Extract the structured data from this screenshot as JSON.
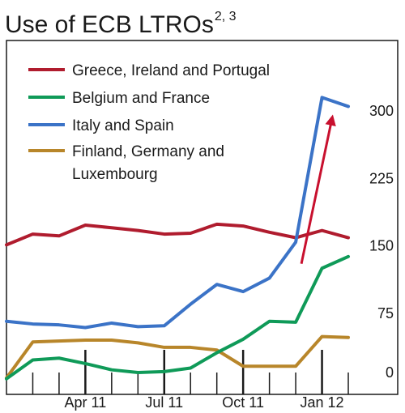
{
  "chart_data": {
    "type": "line",
    "title": "Use of ECB LTROs",
    "title_superscript": "2, 3",
    "xlabel": "",
    "ylabel": "",
    "x": [
      "2011-01",
      "2011-02",
      "2011-03",
      "2011-04",
      "2011-05",
      "2011-06",
      "2011-07",
      "2011-08",
      "2011-09",
      "2011-10",
      "2011-11",
      "2011-12",
      "2012-01",
      "2012-02"
    ],
    "x_ticks": [
      "Apr 11",
      "Jul 11",
      "Oct 11",
      "Jan 12"
    ],
    "x_tick_index": [
      3,
      6,
      9,
      12
    ],
    "y_ticks": [
      0,
      75,
      150,
      225,
      300
    ],
    "ylim": [
      0,
      330
    ],
    "grid": false,
    "legend_position": "top-left",
    "series": [
      {
        "name": "Greece, Ireland and Portugal",
        "color": "#b01c2e",
        "values": [
          151,
          163,
          161,
          173,
          170,
          167,
          163,
          164,
          174,
          172,
          165,
          159,
          167,
          159
        ]
      },
      {
        "name": "Belgium and France",
        "color": "#0f9a58",
        "values": [
          2,
          23,
          25,
          19,
          12,
          9,
          10,
          14,
          31,
          46,
          66,
          65,
          125,
          138
        ]
      },
      {
        "name": "Italy and Spain",
        "color": "#3b73c7",
        "values": [
          66,
          63,
          62,
          59,
          64,
          60,
          61,
          85,
          107,
          99,
          114,
          154,
          315,
          305
        ]
      },
      {
        "name": "Finland, Germany and Luxembourg",
        "color": "#b8862a",
        "values": [
          3,
          43,
          44,
          45,
          45,
          42,
          37,
          37,
          34,
          16,
          16,
          16,
          49,
          48
        ]
      }
    ],
    "annotations": [
      {
        "type": "arrow",
        "color": "#c8102e",
        "from": [
          11,
          130
        ],
        "to": [
          12,
          290
        ]
      }
    ]
  }
}
